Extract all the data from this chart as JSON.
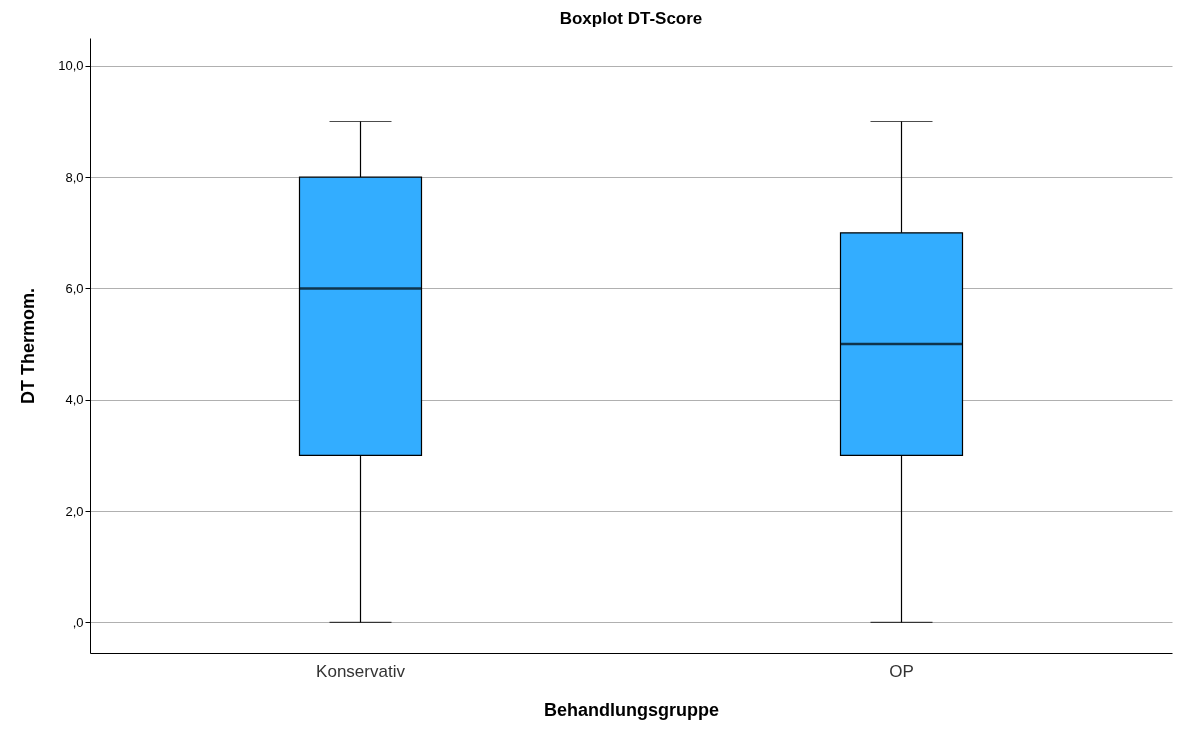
{
  "chart_data": {
    "type": "box",
    "title": "Boxplot DT-Score",
    "xlabel": "Behandlungsgruppe",
    "ylabel": "DT Thermom.",
    "categories": [
      "Konservativ",
      "OP"
    ],
    "boxes": [
      {
        "low": 0,
        "q1": 3,
        "median": 6,
        "q3": 8,
        "high": 9
      },
      {
        "low": 0,
        "q1": 3,
        "median": 5,
        "q3": 7,
        "high": 9
      }
    ],
    "color": "#33adff",
    "ylim": [
      -0.55,
      10.5
    ],
    "yticks": [
      {
        "value": 0,
        "label": ",0"
      },
      {
        "value": 2,
        "label": "2,0"
      },
      {
        "value": 4,
        "label": "4,0"
      },
      {
        "value": 6,
        "label": "6,0"
      },
      {
        "value": 8,
        "label": "8,0"
      },
      {
        "value": 10,
        "label": "10,0"
      }
    ],
    "grid": "y"
  }
}
